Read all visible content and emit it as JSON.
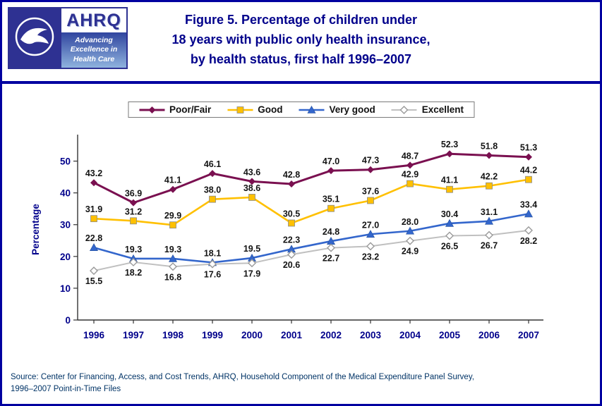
{
  "page": {
    "border_color": "#0000A0",
    "accent_navy": "#00008B"
  },
  "header": {
    "title_lines": [
      "Figure 5. Percentage of children under",
      "18 years with public only health insurance,",
      "by health status, first half 1996–2007"
    ],
    "ahrq": {
      "word": "AHRQ",
      "tagline_lines": [
        "Advancing",
        "Excellence in",
        "Health Care"
      ]
    }
  },
  "source_lines": [
    "Source: Center for Financing, Access, and Cost Trends, AHRQ, Household Component of the Medical Expenditure Panel Survey,",
    "1996–2007 Point-in-Time Files"
  ],
  "chart_data": {
    "type": "line",
    "title": "Figure 5. Percentage of children under 18 years with public only health insurance, by health status, first half 1996–2007",
    "x": [
      1996,
      1997,
      1998,
      1999,
      2000,
      2001,
      2002,
      2003,
      2004,
      2005,
      2006,
      2007
    ],
    "series": [
      {
        "name": "Poor/Fair",
        "color": "#7A1050",
        "marker": "diamond",
        "label_position": "above",
        "values": [
          43.2,
          36.9,
          41.1,
          46.1,
          43.6,
          42.8,
          47.0,
          47.3,
          48.7,
          52.3,
          51.8,
          51.3
        ]
      },
      {
        "name": "Good",
        "color": "#FFC000",
        "marker": "square",
        "label_position": "above",
        "values": [
          31.9,
          31.2,
          29.9,
          38.0,
          38.6,
          30.5,
          35.1,
          37.6,
          42.9,
          41.1,
          42.2,
          44.2
        ]
      },
      {
        "name": "Very good",
        "color": "#3366CC",
        "marker": "triangle",
        "label_position": "above",
        "values": [
          22.8,
          19.3,
          19.3,
          18.1,
          19.5,
          22.3,
          24.8,
          27.0,
          28.0,
          30.4,
          31.1,
          33.4
        ]
      },
      {
        "name": "Excellent",
        "color": "#C0C0C0",
        "marker": "open-diamond",
        "label_position": "below",
        "values": [
          15.5,
          18.2,
          16.8,
          17.6,
          17.9,
          20.6,
          22.7,
          23.2,
          24.9,
          26.5,
          26.7,
          28.2
        ]
      }
    ],
    "ylabel": "Percentage",
    "xlabel": "",
    "ylim": [
      0,
      57
    ],
    "yticks": [
      0,
      10,
      20,
      30,
      40,
      50
    ],
    "grid": false,
    "legend_position": "top",
    "label_color": "#141414",
    "axis_text_color": "#00008B"
  }
}
